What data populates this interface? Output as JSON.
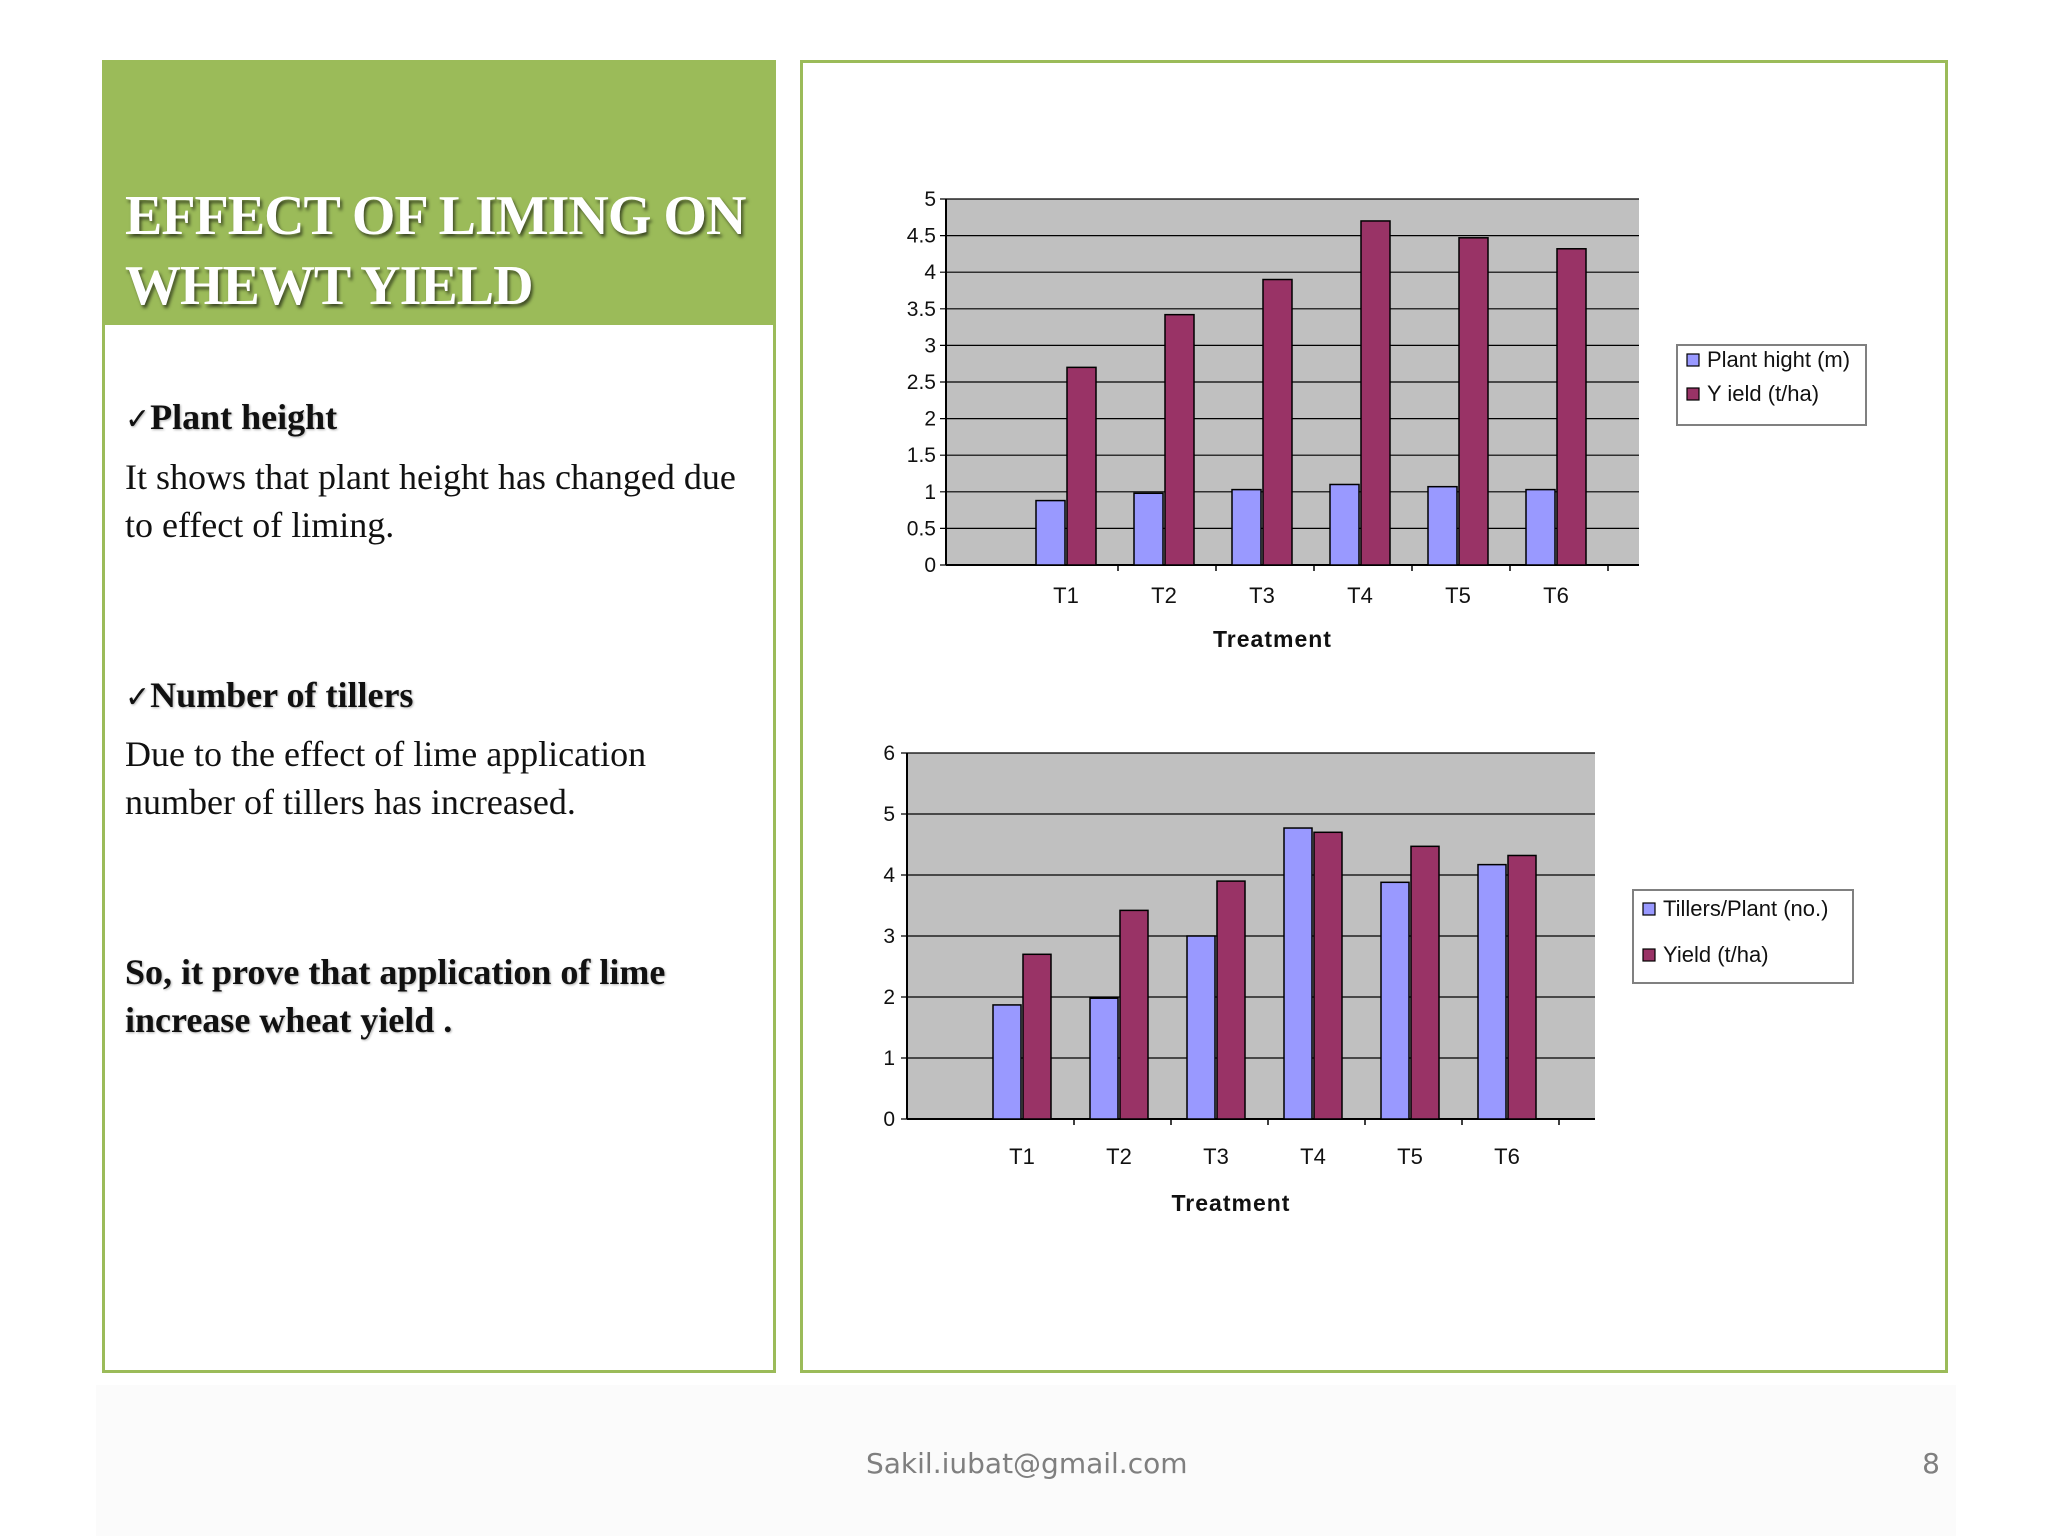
{
  "slide": {
    "title": "EFFECT OF LIMING ON WHEWT  YIELD",
    "bullets": [
      {
        "check": "✓",
        "heading": "Plant height",
        "text": "It shows that plant height has changed due to effect of liming."
      },
      {
        "check": "✓",
        "heading": "Number of tillers",
        "text": "Due to the effect of lime application number of tillers has increased."
      }
    ],
    "conclusion": "So, it prove that application of lime increase wheat yield .",
    "footer": {
      "email": "Sakil.iubat@gmail.com",
      "page": "8"
    }
  },
  "colors": {
    "accent_green": "#9bbb59",
    "series_blue": "#9999ff",
    "series_maroon": "#993366",
    "plot_bg": "#c0c0c0"
  },
  "chart_data": [
    {
      "type": "bar",
      "categories": [
        "T1",
        "T2",
        "T3",
        "T4",
        "T5",
        "T6"
      ],
      "series": [
        {
          "name": "Plant hight (m)",
          "values": [
            0.88,
            0.98,
            1.03,
            1.1,
            1.07,
            1.03
          ]
        },
        {
          "name": "Y ield (t/ha)",
          "values": [
            2.7,
            3.42,
            3.9,
            4.7,
            4.47,
            4.32
          ]
        }
      ],
      "title": "",
      "xlabel": "Treatment",
      "ylabel": "",
      "ylim": [
        0,
        5
      ],
      "yticks": [
        "0",
        "0.5",
        "1",
        "1.5",
        "2",
        "2.5",
        "3",
        "3.5",
        "4",
        "4.5",
        "5"
      ],
      "grid": true,
      "legend": "right"
    },
    {
      "type": "bar",
      "categories": [
        "T1",
        "T2",
        "T3",
        "T4",
        "T5",
        "T6"
      ],
      "series": [
        {
          "name": "Tillers/Plant (no.)",
          "values": [
            1.87,
            1.98,
            3.0,
            4.77,
            3.88,
            4.17
          ]
        },
        {
          "name": "Yield (t/ha)",
          "values": [
            2.7,
            3.42,
            3.9,
            4.7,
            4.47,
            4.32
          ]
        }
      ],
      "title": "",
      "xlabel": "Treatment",
      "ylabel": "",
      "ylim": [
        0,
        6
      ],
      "yticks": [
        "0",
        "1",
        "2",
        "3",
        "4",
        "5",
        "6"
      ],
      "grid": true,
      "legend": "right"
    }
  ]
}
